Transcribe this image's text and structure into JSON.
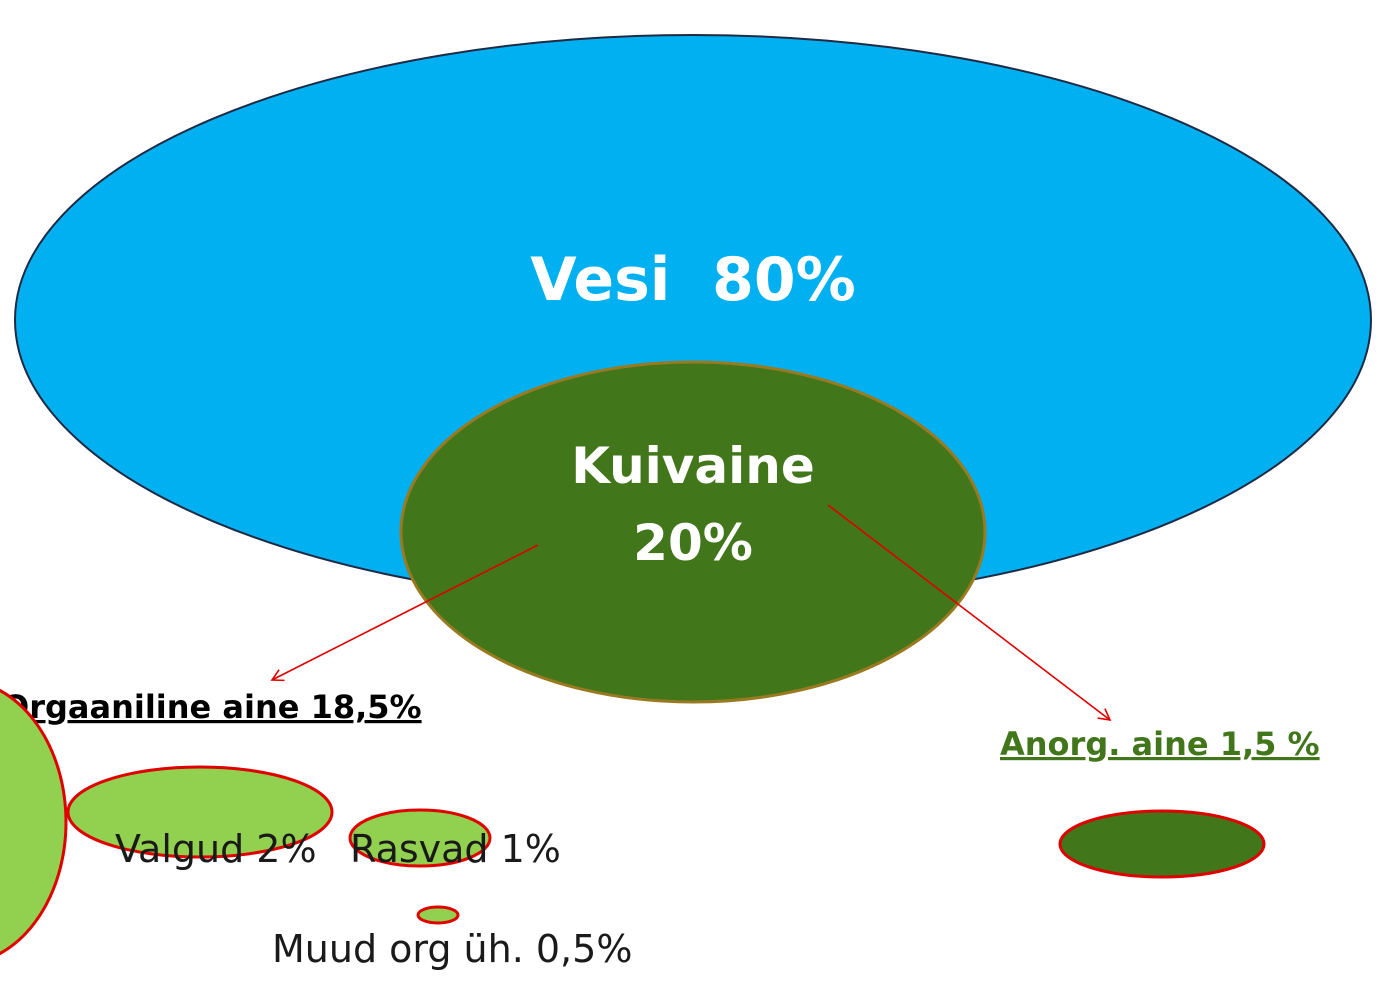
{
  "water": {
    "label": "Vesi  80%"
  },
  "dry_matter": {
    "label": "Kuivaine",
    "share": "20%"
  },
  "organic": {
    "label": "Orgaaniline aine 18,5%"
  },
  "inorganic": {
    "label": "Anorg. aine 1,5 %"
  },
  "items": [
    {
      "label": "Valgud 2%"
    },
    {
      "label": "Rasvad 1%"
    },
    {
      "label": "Muud org üh. 0,5%"
    }
  ]
}
